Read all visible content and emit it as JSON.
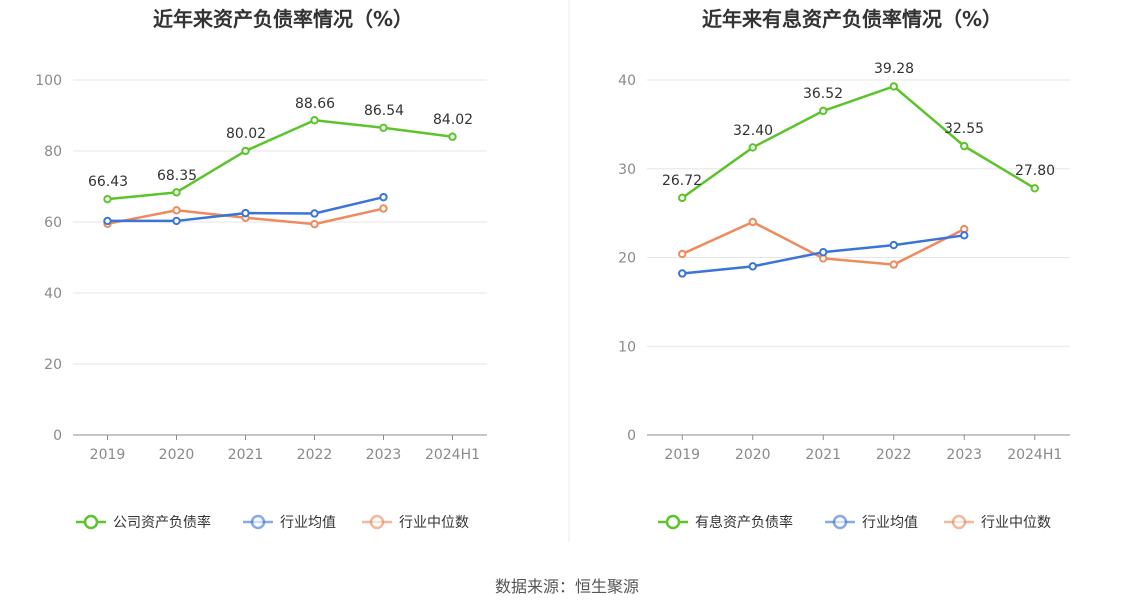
{
  "source_label": "数据来源：恒生聚源",
  "chart_data": [
    {
      "type": "line",
      "title": "近年来资产负债率情况（%）",
      "categories": [
        "2019",
        "2020",
        "2021",
        "2022",
        "2023",
        "2024H1"
      ],
      "ylim": [
        0,
        100
      ],
      "yticks": [
        "0",
        "20",
        "40",
        "60",
        "80",
        "100"
      ],
      "grid": true,
      "legend_position": "bottom",
      "series": [
        {
          "name": "公司资产负债率",
          "color": "#5ac42a",
          "values": [
            66.43,
            68.35,
            80.02,
            88.66,
            86.54,
            84.02
          ],
          "labels": [
            "66.43",
            "68.35",
            "80.02",
            "88.66",
            "86.54",
            "84.02"
          ]
        },
        {
          "name": "行业均值",
          "color": "#3a74d8",
          "values": [
            60.3,
            60.3,
            62.5,
            62.4,
            67.0,
            null
          ]
        },
        {
          "name": "行业中位数",
          "color": "#ee8a5e",
          "values": [
            59.5,
            63.3,
            61.2,
            59.4,
            63.8,
            null
          ]
        }
      ]
    },
    {
      "type": "line",
      "title": "近年来有息资产负债率情况（%）",
      "categories": [
        "2019",
        "2020",
        "2021",
        "2022",
        "2023",
        "2024H1"
      ],
      "ylim": [
        0,
        40
      ],
      "yticks": [
        "0",
        "10",
        "20",
        "30",
        "40"
      ],
      "grid": true,
      "legend_position": "bottom",
      "series": [
        {
          "name": "有息资产负债率",
          "color": "#5ac42a",
          "values": [
            26.72,
            32.4,
            36.52,
            39.28,
            32.55,
            27.8
          ],
          "labels": [
            "26.72",
            "32.40",
            "36.52",
            "39.28",
            "32.55",
            "27.80"
          ]
        },
        {
          "name": "行业均值",
          "color": "#3a74d8",
          "values": [
            18.2,
            19.0,
            20.6,
            21.4,
            22.5,
            null
          ]
        },
        {
          "name": "行业中位数",
          "color": "#ee8a5e",
          "values": [
            20.4,
            24.0,
            19.9,
            19.2,
            23.2,
            null
          ]
        }
      ]
    }
  ]
}
